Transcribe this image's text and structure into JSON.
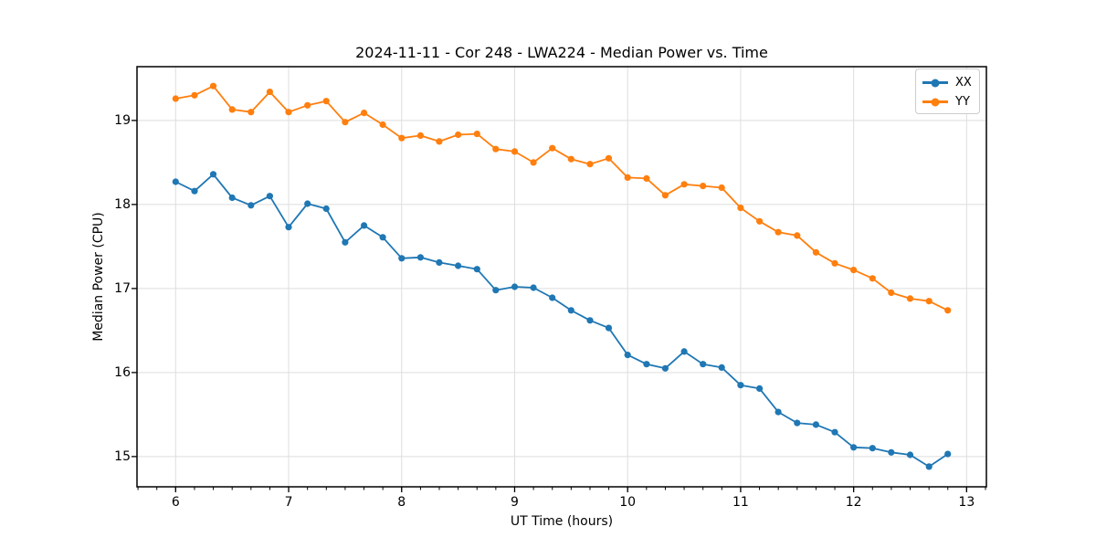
{
  "chart_data": {
    "type": "line",
    "title": "2024-11-11 - Cor 248 - LWA224 - Median Power vs. Time",
    "xlabel": "UT Time (hours)",
    "ylabel": "Median Power (CPU)",
    "xlim": [
      5.658,
      13.175
    ],
    "ylim": [
      14.64,
      19.64
    ],
    "xticks": [
      6,
      7,
      8,
      9,
      10,
      11,
      12,
      13
    ],
    "yticks": [
      15,
      16,
      17,
      18,
      19
    ],
    "minor_tick_step_x": 0.16667,
    "grid": true,
    "grid_color": "#dedede",
    "axis_color": "#000000",
    "legend_position": "upper right",
    "marker": "o",
    "x": [
      6.0,
      6.167,
      6.333,
      6.5,
      6.667,
      6.833,
      7.0,
      7.167,
      7.333,
      7.5,
      7.667,
      7.833,
      8.0,
      8.167,
      8.333,
      8.5,
      8.667,
      8.833,
      9.0,
      9.167,
      9.333,
      9.5,
      9.667,
      9.833,
      10.0,
      10.167,
      10.333,
      10.5,
      10.667,
      10.833,
      11.0,
      11.167,
      11.333,
      11.5,
      11.667,
      11.833,
      12.0,
      12.167,
      12.333,
      12.5,
      12.667,
      12.833
    ],
    "series": [
      {
        "name": "XX",
        "color": "#1f77b4",
        "values": [
          18.27,
          18.16,
          18.36,
          18.08,
          17.99,
          18.1,
          17.73,
          18.01,
          17.95,
          17.55,
          17.75,
          17.61,
          17.36,
          17.37,
          17.31,
          17.27,
          17.23,
          16.98,
          17.02,
          17.01,
          16.89,
          16.74,
          16.62,
          16.53,
          16.21,
          16.1,
          16.05,
          16.25,
          16.1,
          16.06,
          15.85,
          15.81,
          15.53,
          15.4,
          15.38,
          15.29,
          15.11,
          15.1,
          15.05,
          15.02,
          14.88,
          15.03
        ]
      },
      {
        "name": "YY",
        "color": "#ff7f0e",
        "values": [
          19.26,
          19.3,
          19.41,
          19.13,
          19.1,
          19.34,
          19.1,
          19.18,
          19.23,
          18.98,
          19.09,
          18.95,
          18.79,
          18.82,
          18.75,
          18.83,
          18.84,
          18.66,
          18.63,
          18.5,
          18.67,
          18.54,
          18.48,
          18.55,
          18.32,
          18.31,
          18.11,
          18.24,
          18.22,
          18.2,
          17.96,
          17.8,
          17.67,
          17.63,
          17.43,
          17.3,
          17.22,
          17.12,
          16.95,
          16.88,
          16.85,
          16.74
        ]
      }
    ]
  },
  "legend": {
    "items": [
      {
        "label": "XX",
        "color": "#1f77b4"
      },
      {
        "label": "YY",
        "color": "#ff7f0e"
      }
    ]
  }
}
